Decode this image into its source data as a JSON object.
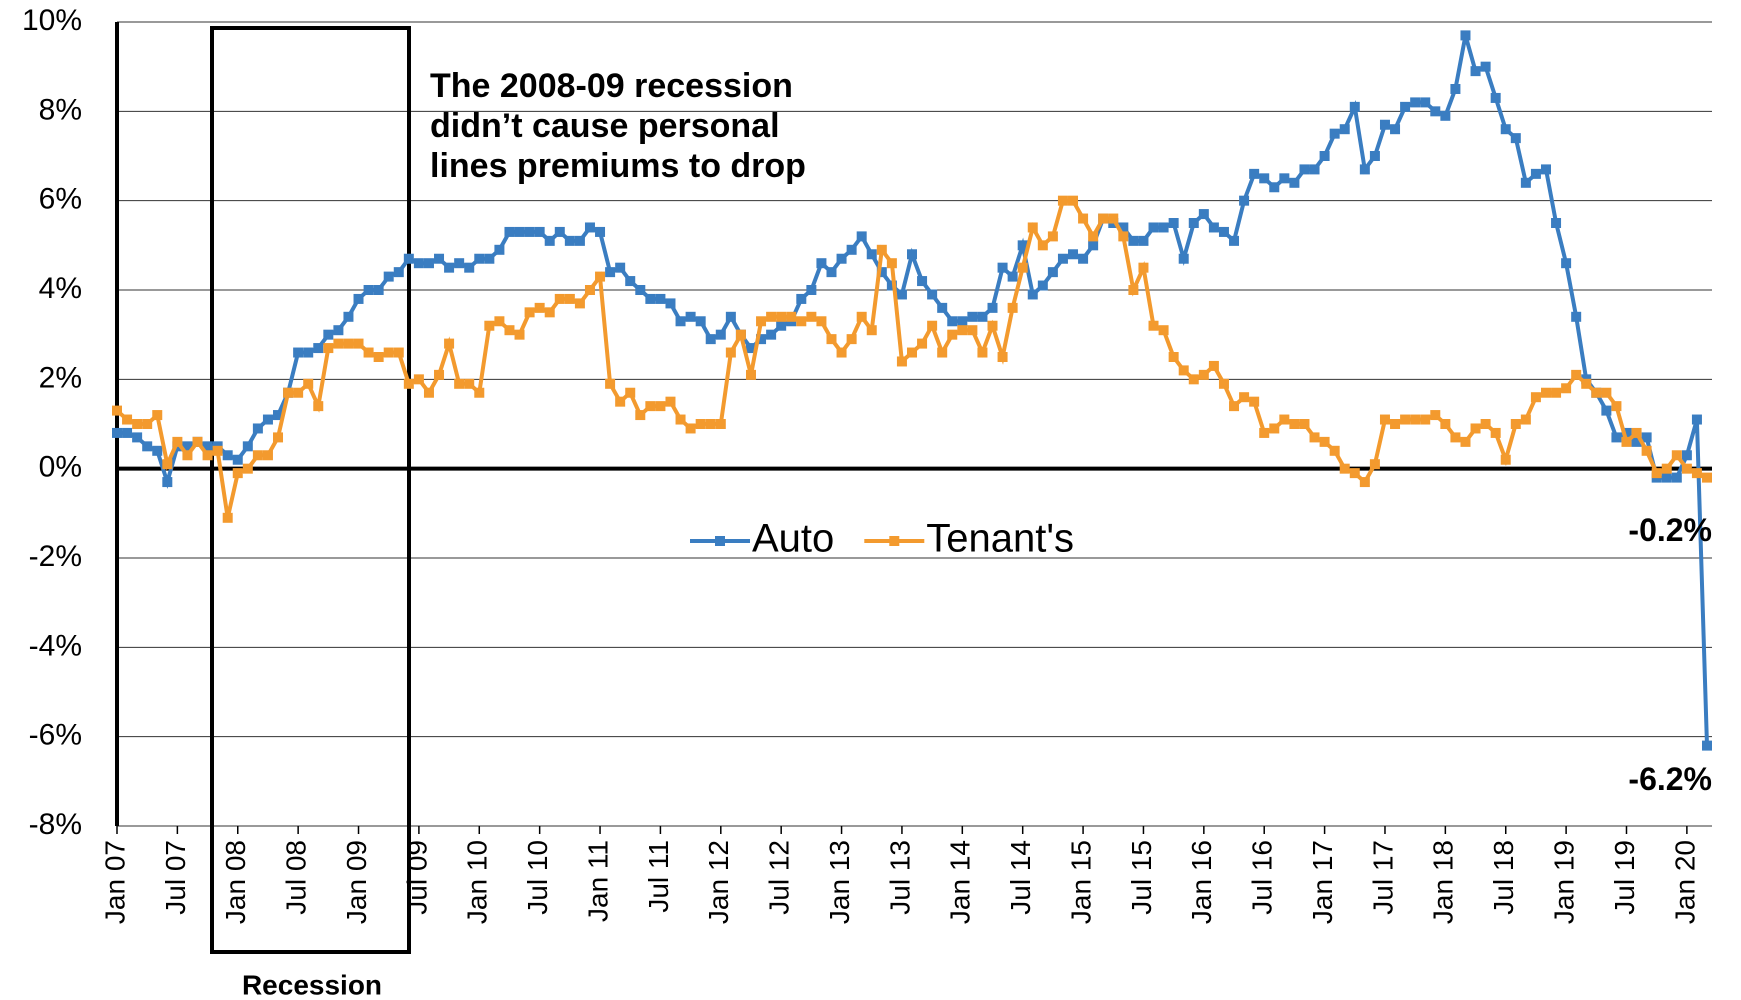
{
  "chart_data": {
    "type": "line",
    "annotation": [
      "The 2008-09 recession",
      "didn’t cause personal",
      "lines premiums to drop"
    ],
    "region_label": "Recession",
    "categories": [
      "Jan 07",
      null,
      null,
      null,
      null,
      null,
      "Jul 07",
      null,
      null,
      null,
      null,
      null,
      "Jan 08",
      null,
      null,
      null,
      null,
      null,
      "Jul 08",
      null,
      null,
      null,
      null,
      null,
      "Jan 09",
      null,
      null,
      null,
      null,
      null,
      "Jul 09",
      null,
      null,
      null,
      null,
      null,
      "Jan 10",
      null,
      null,
      null,
      null,
      null,
      "Jul 10",
      null,
      null,
      null,
      null,
      null,
      "Jan 11",
      null,
      null,
      null,
      null,
      null,
      "Jul 11",
      null,
      null,
      null,
      null,
      null,
      "Jan 12",
      null,
      null,
      null,
      null,
      null,
      "Jul 12",
      null,
      null,
      null,
      null,
      null,
      "Jan 13",
      null,
      null,
      null,
      null,
      null,
      "Jul 13",
      null,
      null,
      null,
      null,
      null,
      "Jan 14",
      null,
      null,
      null,
      null,
      null,
      "Jul 14",
      null,
      null,
      null,
      null,
      null,
      "Jan 15",
      null,
      null,
      null,
      null,
      null,
      "Jul 15",
      null,
      null,
      null,
      null,
      null,
      "Jan 16",
      null,
      null,
      null,
      null,
      null,
      "Jul 16",
      null,
      null,
      null,
      null,
      null,
      "Jan 17",
      null,
      null,
      null,
      null,
      null,
      "Jul 17",
      null,
      null,
      null,
      null,
      null,
      "Jan 18",
      null,
      null,
      null,
      null,
      null,
      "Jul 18",
      null,
      null,
      null,
      null,
      null,
      "Jan 19",
      null,
      null,
      null,
      null,
      null,
      "Jul 19",
      null,
      null,
      null,
      null,
      null,
      "Jan 20",
      null,
      null
    ],
    "series": [
      {
        "name": "Auto",
        "color": "#3a7dc1",
        "value_labels": {
          "158": "-6.2%"
        },
        "values": [
          0.8,
          0.8,
          0.7,
          0.5,
          0.4,
          -0.3,
          0.5,
          0.5,
          0.6,
          0.5,
          0.5,
          0.3,
          0.2,
          0.5,
          0.9,
          1.1,
          1.2,
          1.7,
          2.6,
          2.6,
          2.7,
          3.0,
          3.1,
          3.4,
          3.8,
          4.0,
          4.0,
          4.3,
          4.4,
          4.7,
          4.6,
          4.6,
          4.7,
          4.5,
          4.6,
          4.5,
          4.7,
          4.7,
          4.9,
          5.3,
          5.3,
          5.3,
          5.3,
          5.1,
          5.3,
          5.1,
          5.1,
          5.4,
          5.3,
          4.4,
          4.5,
          4.2,
          4.0,
          3.8,
          3.8,
          3.7,
          3.3,
          3.4,
          3.3,
          2.9,
          3.0,
          3.4,
          3.0,
          2.7,
          2.9,
          3.0,
          3.2,
          3.3,
          3.8,
          4.0,
          4.6,
          4.4,
          4.7,
          4.9,
          5.2,
          4.8,
          4.4,
          4.1,
          3.9,
          4.8,
          4.2,
          3.9,
          3.6,
          3.3,
          3.3,
          3.4,
          3.4,
          3.6,
          4.5,
          4.3,
          5.0,
          3.9,
          4.1,
          4.4,
          4.7,
          4.8,
          4.7,
          5.0,
          5.6,
          5.5,
          5.4,
          5.1,
          5.1,
          5.4,
          5.4,
          5.5,
          4.7,
          5.5,
          5.7,
          5.4,
          5.3,
          5.1,
          6.0,
          6.6,
          6.5,
          6.3,
          6.5,
          6.4,
          6.7,
          6.7,
          7.0,
          7.5,
          7.6,
          8.1,
          6.7,
          7.0,
          7.7,
          7.6,
          8.1,
          8.2,
          8.2,
          8.0,
          7.9,
          8.5,
          9.7,
          8.9,
          9.0,
          8.3,
          7.6,
          7.4,
          6.4,
          6.6,
          6.7,
          5.5,
          4.6,
          3.4,
          2.0,
          1.7,
          1.3,
          0.7,
          0.8,
          0.6,
          0.7,
          -0.2,
          -0.2,
          -0.2,
          0.3,
          1.1,
          -6.2
        ]
      },
      {
        "name": "Tenant's",
        "color": "#f39a2e",
        "value_labels": {
          "158": "-0.2%"
        },
        "values": [
          1.3,
          1.1,
          1.0,
          1.0,
          1.2,
          0.1,
          0.6,
          0.3,
          0.6,
          0.3,
          0.4,
          -1.1,
          -0.1,
          0.0,
          0.3,
          0.3,
          0.7,
          1.7,
          1.7,
          1.9,
          1.4,
          2.7,
          2.8,
          2.8,
          2.8,
          2.6,
          2.5,
          2.6,
          2.6,
          1.9,
          2.0,
          1.7,
          2.1,
          2.8,
          1.9,
          1.9,
          1.7,
          3.2,
          3.3,
          3.1,
          3.0,
          3.5,
          3.6,
          3.5,
          3.8,
          3.8,
          3.7,
          4.0,
          4.3,
          1.9,
          1.5,
          1.7,
          1.2,
          1.4,
          1.4,
          1.5,
          1.1,
          0.9,
          1.0,
          1.0,
          1.0,
          2.6,
          3.0,
          2.1,
          3.3,
          3.4,
          3.4,
          3.4,
          3.3,
          3.4,
          3.3,
          2.9,
          2.6,
          2.9,
          3.4,
          3.1,
          4.9,
          4.6,
          2.4,
          2.6,
          2.8,
          3.2,
          2.6,
          3.0,
          3.1,
          3.1,
          2.6,
          3.2,
          2.5,
          3.6,
          4.5,
          5.4,
          5.0,
          5.2,
          6.0,
          6.0,
          5.6,
          5.2,
          5.6,
          5.6,
          5.2,
          4.0,
          4.5,
          3.2,
          3.1,
          2.5,
          2.2,
          2.0,
          2.1,
          2.3,
          1.9,
          1.4,
          1.6,
          1.5,
          0.8,
          0.9,
          1.1,
          1.0,
          1.0,
          0.7,
          0.6,
          0.4,
          0.0,
          -0.1,
          -0.3,
          0.1,
          1.1,
          1.0,
          1.1,
          1.1,
          1.1,
          1.2,
          1.0,
          0.7,
          0.6,
          0.9,
          1.0,
          0.8,
          0.2,
          1.0,
          1.1,
          1.6,
          1.7,
          1.7,
          1.8,
          2.1,
          1.9,
          1.7,
          1.7,
          1.4,
          0.6,
          0.8,
          0.4,
          -0.1,
          0.0,
          0.3,
          0.0,
          -0.1,
          -0.2
        ]
      }
    ],
    "ylim": [
      -8,
      10
    ],
    "yticks": [
      {
        "value": -8,
        "label": "-8%"
      },
      {
        "value": -6,
        "label": "-6%"
      },
      {
        "value": -4,
        "label": "-4%"
      },
      {
        "value": -2,
        "label": "-2%"
      },
      {
        "value": 0,
        "label": "0%"
      },
      {
        "value": 2,
        "label": "2%"
      },
      {
        "value": 4,
        "label": "4%"
      },
      {
        "value": 6,
        "label": "6%"
      },
      {
        "value": 8,
        "label": "8%"
      },
      {
        "value": 10,
        "label": "10%"
      }
    ],
    "grid": true,
    "legend": "center"
  }
}
